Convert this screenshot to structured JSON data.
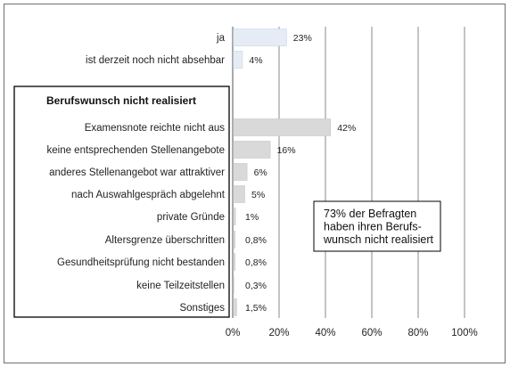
{
  "chart_data": {
    "type": "bar",
    "orientation": "horizontal",
    "section_title": "Berufswunsch nicht realisiert",
    "categories": [
      "ja",
      "ist derzeit noch nicht absehbar",
      "Examensnote reichte nicht aus",
      "keine entsprechenden Stellenangebote",
      "anderes Stellenangebot war attraktiver",
      "nach Auswahlgespräch abgelehnt",
      "private Gründe",
      "Altersgrenze überschritten",
      "Gesundheitsprüfung nicht bestanden",
      "keine Teilzeitstellen",
      "Sonstiges"
    ],
    "values": [
      23,
      4,
      42,
      16,
      6,
      5,
      1,
      0.8,
      0.8,
      0.3,
      1.5
    ],
    "value_labels": [
      "23%",
      "4%",
      "42%",
      "16%",
      "6%",
      "5%",
      "1%",
      "0,8%",
      "0,8%",
      "0,3%",
      "1,5%"
    ],
    "xlim": [
      0,
      100
    ],
    "xticks": [
      "0%",
      "20%",
      "40%",
      "60%",
      "80%",
      "100%"
    ],
    "grid": "vertical",
    "annotation": [
      "73% der Befragten",
      "haben ihren Berufs-",
      "wunsch nicht realisiert"
    ],
    "colors": {
      "bar_top": "#e6ecf6",
      "bar_top_border": "#c7d2e4",
      "bar_other": "#d9d9d9",
      "bar_other_border": "#c6c6c6",
      "grid": "#8a8a8a",
      "frame": "#6f6f6f"
    }
  }
}
